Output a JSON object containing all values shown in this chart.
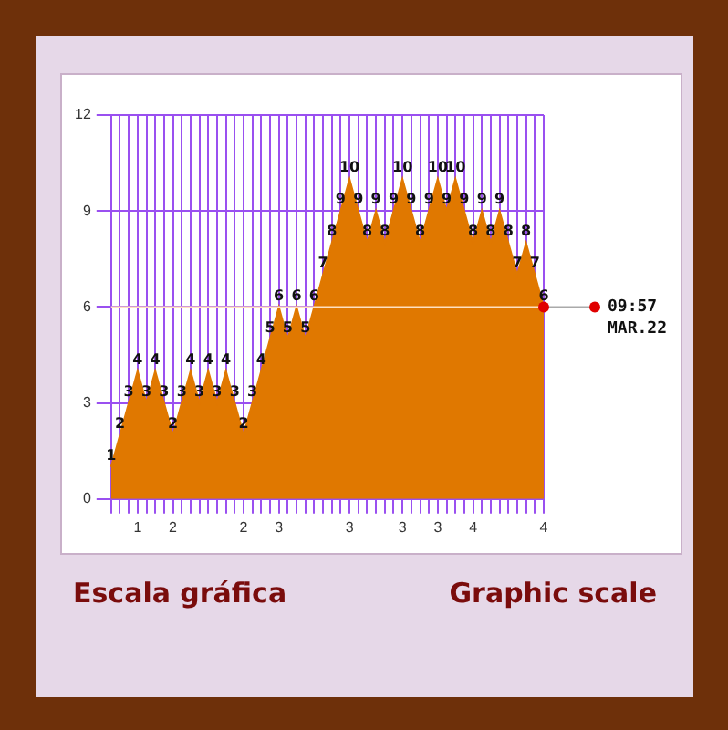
{
  "chart_data": {
    "type": "area",
    "categories": [
      null,
      null,
      null,
      "1",
      null,
      null,
      null,
      "2",
      null,
      null,
      null,
      null,
      null,
      null,
      null,
      "2",
      null,
      null,
      null,
      "3",
      null,
      null,
      null,
      null,
      null,
      null,
      null,
      "3",
      null,
      null,
      null,
      null,
      null,
      "3",
      null,
      null,
      null,
      "3",
      null,
      null,
      null,
      "4",
      null,
      null,
      null,
      null,
      null,
      null,
      null,
      "4"
    ],
    "series": [
      {
        "color": "#e07800",
        "values": [
          1,
          2,
          3,
          4,
          3,
          4,
          3,
          2,
          3,
          4,
          3,
          4,
          3,
          4,
          3,
          2,
          3,
          4,
          5,
          6,
          5,
          6,
          5,
          6,
          7,
          8,
          9,
          10,
          9,
          8,
          9,
          8,
          9,
          10,
          9,
          8,
          9,
          10,
          9,
          10,
          9,
          8,
          9,
          8,
          9,
          8,
          7,
          8,
          7,
          6
        ]
      }
    ],
    "ylim": [
      0,
      12
    ],
    "yticks": [
      0,
      3,
      6,
      9,
      12
    ],
    "grid": true,
    "data_labels": true,
    "legend": false,
    "ref_lines": [
      {
        "axis": "y",
        "value": 6,
        "color": "#ffe0c0"
      }
    ],
    "annotations": [
      "09:57 MAR.22",
      "Escala gráfica",
      "Graphic scale"
    ]
  }
}
